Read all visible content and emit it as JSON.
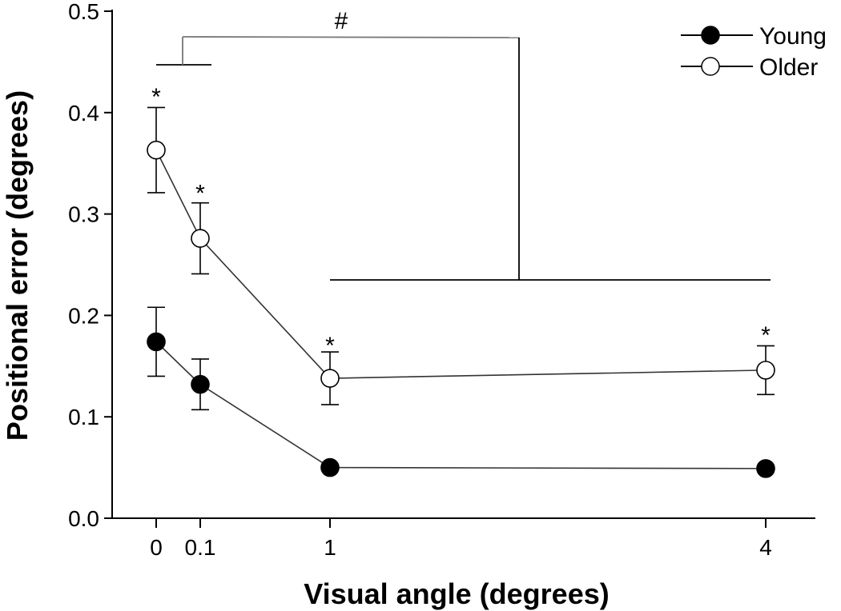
{
  "chart_data": {
    "type": "line",
    "xlabel": "Visual angle (degrees)",
    "ylabel": "Positional error (degrees)",
    "ylim": [
      0,
      0.5
    ],
    "yticks": [
      "0.0",
      "0.1",
      "0.2",
      "0.3",
      "0.4",
      "0.5"
    ],
    "x": [
      0,
      0.1,
      1,
      4
    ],
    "xticks": [
      "0",
      "0.1",
      "1",
      "4"
    ],
    "legend_position": "top-right",
    "series": [
      {
        "name": "Young",
        "marker": "filled-circle",
        "values": [
          0.174,
          0.132,
          0.05,
          0.049
        ],
        "errors": [
          0.034,
          0.025,
          0.0,
          0.0
        ],
        "color": "#000000",
        "line_color": "#333333"
      },
      {
        "name": "Older",
        "marker": "open-circle",
        "values": [
          0.363,
          0.276,
          0.138,
          0.146
        ],
        "errors": [
          0.042,
          0.035,
          0.026,
          0.024
        ],
        "color": "#000000",
        "line_color": "#333333"
      }
    ],
    "annotations": {
      "stars": [
        {
          "label": "*",
          "x": 0,
          "y": 0.425
        },
        {
          "label": "*",
          "x": 0.1,
          "y": 0.33
        },
        {
          "label": "*",
          "x": 1,
          "y": 0.18
        },
        {
          "label": "*",
          "x": 4,
          "y": 0.19
        }
      ],
      "hash": {
        "label": "#"
      }
    },
    "bracket_color": "#777777"
  }
}
